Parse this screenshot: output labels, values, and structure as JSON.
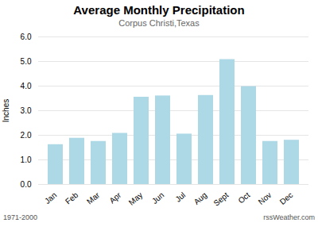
{
  "chart_data": {
    "type": "bar",
    "title": "Average Monthly Precipitation",
    "subtitle": "Corpus Christi,Texas",
    "ylabel": "Inches",
    "categories": [
      "Jan",
      "Feb",
      "Mar",
      "Apr",
      "May",
      "Jun",
      "Jul",
      "Aug",
      "Sept",
      "Oct",
      "Nov",
      "Dec"
    ],
    "values": [
      1.62,
      1.88,
      1.75,
      2.08,
      3.55,
      3.6,
      2.05,
      3.62,
      5.08,
      3.98,
      1.75,
      1.8
    ],
    "color": "#add8e6",
    "ylim": [
      0.0,
      6.0
    ],
    "yticks": [
      {
        "value": 0,
        "label": "0.0"
      },
      {
        "value": 1,
        "label": "1.0"
      },
      {
        "value": 2,
        "label": "2.0"
      },
      {
        "value": 3,
        "label": "3.0"
      },
      {
        "value": 4,
        "label": "4.0"
      },
      {
        "value": 5,
        "label": "5.0"
      },
      {
        "value": 6,
        "label": "6.0"
      }
    ],
    "grid": true,
    "annotations": [
      "1971-2000",
      "rssWeather.com"
    ]
  }
}
